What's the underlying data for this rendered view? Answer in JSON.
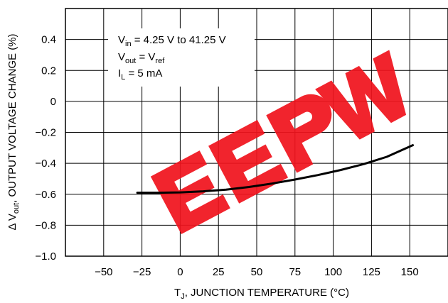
{
  "chart_data": {
    "type": "line",
    "title": "",
    "xlabel": {
      "main": "T",
      "sub": "J",
      "rest": ", JUNCTION TEMPERATURE (°C)"
    },
    "ylabel": {
      "pre": "Δ V",
      "sub": "out",
      "rest": ", OUTPUT VOLTAGE CHANGE (%)"
    },
    "xlim": [
      -75,
      175
    ],
    "ylim": [
      -1.0,
      0.6
    ],
    "x_ticks": [
      -50,
      -25,
      0,
      25,
      50,
      75,
      100,
      125,
      150
    ],
    "x_tick_labels": [
      "−50",
      "−25",
      "0",
      "25",
      "50",
      "75",
      "100",
      "125",
      "150"
    ],
    "y_ticks": [
      0.4,
      0.2,
      0,
      -0.2,
      -0.4,
      -0.6,
      -0.8,
      -1.0
    ],
    "y_tick_labels": [
      "0.4",
      "0.2",
      "0",
      "−0.2",
      "−0.4",
      "−0.6",
      "−0.8",
      "−1.0"
    ],
    "grid": true,
    "series": [
      {
        "x": [
          -28,
          -15,
          0,
          15,
          30,
          45,
          60,
          75,
          90,
          105,
          120,
          135,
          152
        ],
        "y": [
          -0.59,
          -0.59,
          -0.588,
          -0.581,
          -0.57,
          -0.553,
          -0.531,
          -0.505,
          -0.476,
          -0.443,
          -0.405,
          -0.358,
          -0.283
        ]
      }
    ],
    "annotation": [
      {
        "main": "V",
        "sub": "in",
        "rest": " = 4.25 V to 41.25 V"
      },
      {
        "main": "V",
        "sub": "out",
        "rest": " = V",
        "sub2": "ref"
      },
      {
        "main": "I",
        "sub": "L",
        "rest": " = 5 mA"
      }
    ],
    "watermark": "EEPW",
    "colors": {
      "line": "#000000",
      "watermark": "#f0141e",
      "grid": "#000000"
    }
  }
}
